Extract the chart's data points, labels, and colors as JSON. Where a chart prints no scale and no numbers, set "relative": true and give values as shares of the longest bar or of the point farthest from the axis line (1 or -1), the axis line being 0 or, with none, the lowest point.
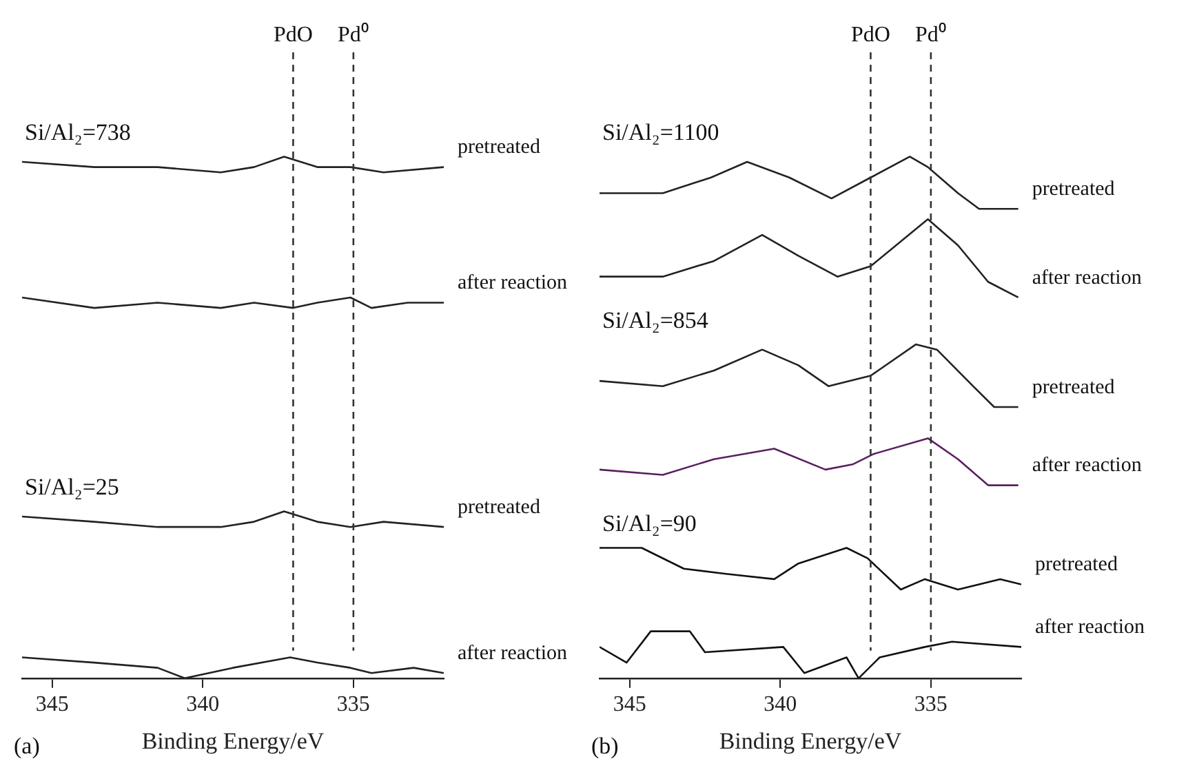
{
  "chart_data": [
    {
      "type": "line",
      "relative": true,
      "xlabel": "Binding Energy/eV",
      "xlim": [
        346,
        332
      ],
      "xticks": [
        345,
        340,
        335
      ],
      "series": [
        {
          "name": "pretreated",
          "color": "#222222",
          "x": [
            346,
            343.6,
            341.5,
            339.4,
            338.3,
            337.3,
            336.2,
            335.1,
            334,
            332
          ],
          "values": [
            0.99,
            0.98,
            0.98,
            0.97,
            0.98,
            1.0,
            0.98,
            0.98,
            0.97,
            0.98
          ]
        },
        {
          "name": "after reaction",
          "color": "#222222",
          "x": [
            346,
            343.6,
            341.5,
            339.4,
            338.3,
            337.0,
            336.2,
            335.1,
            334.4,
            333.2,
            332
          ],
          "values": [
            0.73,
            0.71,
            0.72,
            0.71,
            0.72,
            0.71,
            0.72,
            0.73,
            0.71,
            0.72,
            0.72
          ]
        },
        {
          "name": "pretreated",
          "color": "#222222",
          "x": [
            346,
            343.6,
            341.5,
            339.4,
            338.3,
            337.3,
            336.2,
            335.1,
            334,
            332
          ],
          "values": [
            0.31,
            0.3,
            0.29,
            0.29,
            0.3,
            0.32,
            0.3,
            0.29,
            0.3,
            0.29
          ]
        },
        {
          "name": "after reaction",
          "color": "#222222",
          "x": [
            346,
            343.6,
            341.5,
            340.6,
            339,
            337.1,
            336.2,
            335.1,
            334.4,
            333,
            332
          ],
          "values": [
            0.04,
            0.03,
            0.02,
            0.0,
            0.02,
            0.04,
            0.03,
            0.02,
            0.01,
            0.02,
            0.01
          ]
        }
      ],
      "ref_lines": [
        {
          "axis": "x",
          "value": 337,
          "label": "PdO",
          "line_style": "dashed",
          "color": "#333333"
        },
        {
          "axis": "x",
          "value": 335,
          "label": "Pd⁰",
          "line_style": "dashed",
          "color": "#333333"
        }
      ],
      "annotations": [
        "Si/Al₂=738",
        "Si/Al₂=25",
        "(a)"
      ]
    },
    {
      "type": "line",
      "relative": true,
      "xlabel": "Binding Energy/eV",
      "xlim": [
        346,
        332
      ],
      "xticks": [
        345,
        340,
        335
      ],
      "series": [
        {
          "name": "pretreated",
          "color": "#222222",
          "x": [
            346,
            343.9,
            342.3,
            341.1,
            339.7,
            338.3,
            337.0,
            335.7,
            335.1,
            334.1,
            333.4,
            332.1
          ],
          "values": [
            0.93,
            0.93,
            0.96,
            0.99,
            0.96,
            0.92,
            0.96,
            1.0,
            0.98,
            0.93,
            0.9,
            0.9
          ]
        },
        {
          "name": "after reaction",
          "color": "#222222",
          "x": [
            346,
            343.9,
            342.2,
            340.6,
            339.4,
            338.1,
            337.0,
            335.1,
            334.1,
            333.1,
            332.1
          ],
          "values": [
            0.77,
            0.77,
            0.8,
            0.85,
            0.81,
            0.77,
            0.79,
            0.88,
            0.83,
            0.76,
            0.73
          ]
        },
        {
          "name": "pretreated",
          "color": "#222222",
          "x": [
            346,
            343.9,
            342.2,
            340.6,
            339.4,
            338.4,
            337.0,
            335.5,
            334.8,
            333.6,
            332.9,
            332.1
          ],
          "values": [
            0.57,
            0.56,
            0.59,
            0.63,
            0.6,
            0.56,
            0.58,
            0.64,
            0.63,
            0.56,
            0.52,
            0.52
          ]
        },
        {
          "name": "after reaction",
          "color": "#5a2060",
          "x": [
            346,
            343.9,
            342.2,
            340.2,
            338.5,
            337.6,
            336.9,
            335.1,
            334.1,
            333.1,
            332.1
          ],
          "values": [
            0.4,
            0.39,
            0.42,
            0.44,
            0.4,
            0.41,
            0.43,
            0.46,
            0.42,
            0.37,
            0.37
          ]
        },
        {
          "name": "pretreated",
          "color": "#111111",
          "x": [
            346,
            344.6,
            343.2,
            341.8,
            340.2,
            339.4,
            337.8,
            337.1,
            336.0,
            335.2,
            334.1,
            332.7,
            332.0
          ],
          "values": [
            0.25,
            0.25,
            0.21,
            0.2,
            0.19,
            0.22,
            0.25,
            0.23,
            0.17,
            0.19,
            0.17,
            0.19,
            0.18
          ]
        },
        {
          "name": "after reaction",
          "color": "#111111",
          "x": [
            346,
            345.1,
            344.3,
            343.0,
            342.5,
            339.9,
            339.2,
            337.8,
            337.4,
            336.7,
            335.2,
            334.3,
            332.0
          ],
          "values": [
            0.06,
            0.03,
            0.09,
            0.09,
            0.05,
            0.06,
            0.01,
            0.04,
            0.0,
            0.04,
            0.06,
            0.07,
            0.06
          ]
        }
      ],
      "ref_lines": [
        {
          "axis": "x",
          "value": 337,
          "label": "PdO",
          "line_style": "dashed",
          "color": "#333333"
        },
        {
          "axis": "x",
          "value": 335,
          "label": "Pd⁰",
          "line_style": "dashed",
          "color": "#333333"
        }
      ],
      "annotations": [
        "Si/Al₂=1100",
        "Si/Al₂=854",
        "Si/Al₂=90",
        "(b)"
      ]
    }
  ]
}
